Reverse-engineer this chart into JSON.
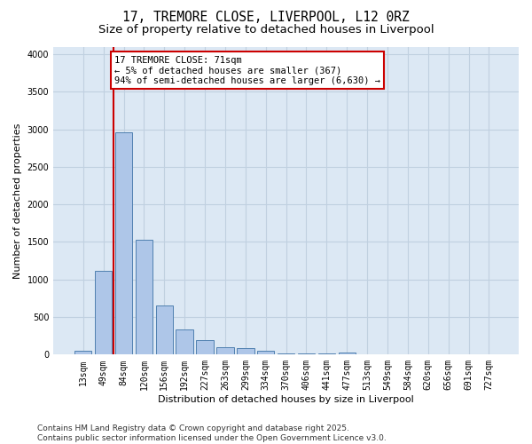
{
  "title_line1": "17, TREMORE CLOSE, LIVERPOOL, L12 0RZ",
  "title_line2": "Size of property relative to detached houses in Liverpool",
  "xlabel": "Distribution of detached houses by size in Liverpool",
  "ylabel": "Number of detached properties",
  "categories": [
    "13sqm",
    "49sqm",
    "84sqm",
    "120sqm",
    "156sqm",
    "192sqm",
    "227sqm",
    "263sqm",
    "299sqm",
    "334sqm",
    "370sqm",
    "406sqm",
    "441sqm",
    "477sqm",
    "513sqm",
    "549sqm",
    "584sqm",
    "620sqm",
    "656sqm",
    "691sqm",
    "727sqm"
  ],
  "values": [
    55,
    1110,
    2960,
    1530,
    655,
    340,
    195,
    95,
    90,
    50,
    20,
    15,
    10,
    30,
    0,
    0,
    0,
    0,
    0,
    0,
    0
  ],
  "bar_color": "#aec6e8",
  "bar_edge_color": "#5080b0",
  "grid_color": "#c0d0e0",
  "background_color": "#dce8f4",
  "vline_color": "#cc0000",
  "vline_x": 1.5,
  "annotation_text": "17 TREMORE CLOSE: 71sqm\n← 5% of detached houses are smaller (367)\n94% of semi-detached houses are larger (6,630) →",
  "annotation_box_color": "#ffffff",
  "annotation_box_edge": "#cc0000",
  "ylim": [
    0,
    4100
  ],
  "yticks": [
    0,
    500,
    1000,
    1500,
    2000,
    2500,
    3000,
    3500,
    4000
  ],
  "footnote": "Contains HM Land Registry data © Crown copyright and database right 2025.\nContains public sector information licensed under the Open Government Licence v3.0.",
  "title_fontsize": 10.5,
  "subtitle_fontsize": 9.5,
  "axis_label_fontsize": 8,
  "tick_fontsize": 7,
  "annotation_fontsize": 7.5,
  "footnote_fontsize": 6.5
}
